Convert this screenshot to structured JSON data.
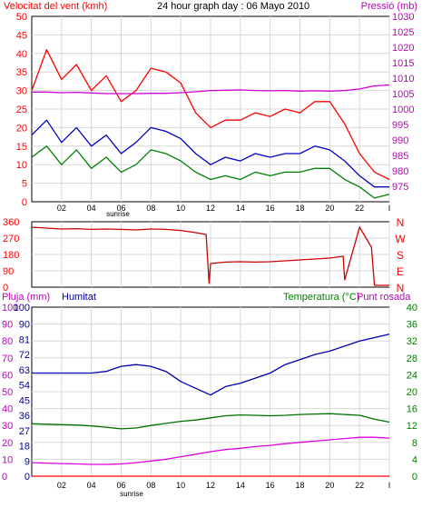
{
  "header": {
    "left_label": "Velocitat del vent (kmh)",
    "center_label": "24 hour graph day : 06 Mayo 2010",
    "right_label": "Pressió (mb)"
  },
  "colors": {
    "wind_gust": "#ff0000",
    "wind_avg": "#0000c8",
    "wind_low": "#008000",
    "pressure": "#d000d0",
    "direction": "#cc0000",
    "humidity": "#0000b0",
    "temperature": "#007000",
    "dewpoint": "#e000e0",
    "rain": "#ff0000",
    "label_red": "#ff0000",
    "label_green": "#008000",
    "label_blue": "#0000a0",
    "label_magenta": "#c000c0",
    "grid": "#d8d8d8",
    "frame": "#000000"
  },
  "x_axis": {
    "tick_labels": [
      "02",
      "04",
      "06",
      "08",
      "10",
      "12",
      "14",
      "16",
      "18",
      "20",
      "22",
      "I"
    ],
    "sunrise_label": "sunrise"
  },
  "chart_data": [
    {
      "type": "line",
      "title": "24 hour graph day : 06 Mayo 2010",
      "ylabel": "Velocitat del vent (kmh)",
      "ylabel_right": "Pressió (mb)",
      "ylim": [
        0,
        50
      ],
      "y_ticks": [
        "0",
        "5",
        "10",
        "15",
        "20",
        "25",
        "30",
        "35",
        "40",
        "45",
        "50"
      ],
      "y2lim": [
        970,
        1030
      ],
      "y2_ticks": [
        "975",
        "980",
        "985",
        "990",
        "995",
        "1000",
        "1005",
        "1010",
        "1015",
        "1020",
        "1025",
        "1030"
      ],
      "x": [
        0,
        1,
        2,
        3,
        4,
        5,
        6,
        7,
        8,
        9,
        10,
        11,
        12,
        13,
        14,
        15,
        16,
        17,
        18,
        19,
        20,
        21,
        22,
        23,
        24
      ],
      "series": [
        {
          "values": [
            30,
            41,
            33,
            37,
            30,
            34,
            27,
            30,
            36,
            35,
            32,
            24,
            20,
            22,
            22,
            24,
            23,
            25,
            24,
            27,
            27,
            21,
            13,
            8,
            6
          ]
        },
        {
          "values": [
            18,
            22,
            16,
            20,
            15,
            18,
            13,
            16,
            20,
            19,
            17,
            13,
            10,
            12,
            11,
            13,
            12,
            13,
            13,
            15,
            14,
            11,
            7,
            4,
            4
          ]
        },
        {
          "values": [
            12,
            15,
            10,
            14,
            9,
            12,
            8,
            10,
            14,
            13,
            11,
            8,
            6,
            7,
            6,
            8,
            7,
            8,
            8,
            9,
            9,
            6,
            4,
            1,
            2
          ]
        },
        {
          "values": [
            1005.5,
            1005.5,
            1005.3,
            1005.4,
            1005.2,
            1005.0,
            1005.0,
            1005.0,
            1005.1,
            1005.1,
            1005.3,
            1005.6,
            1006.0,
            1006.1,
            1006.2,
            1006.0,
            1005.9,
            1006.0,
            1005.8,
            1005.9,
            1005.8,
            1006.0,
            1006.5,
            1007.5,
            1007.8
          ]
        }
      ]
    },
    {
      "type": "line",
      "ylim": [
        0,
        360
      ],
      "y_ticks": [
        "0",
        "90",
        "180",
        "270",
        "360"
      ],
      "right_labels": [
        "N",
        "W",
        "S",
        "E",
        "N"
      ],
      "x": [
        0,
        1,
        2,
        3,
        4,
        5,
        6,
        7,
        8,
        9,
        10,
        11,
        11.7,
        11.9,
        12,
        13,
        14,
        15,
        16,
        17,
        18,
        19,
        20,
        20.9,
        21,
        22,
        22.8,
        23,
        24
      ],
      "series": [
        {
          "values": [
            330,
            325,
            320,
            322,
            318,
            320,
            318,
            315,
            320,
            318,
            312,
            300,
            290,
            20,
            130,
            138,
            140,
            138,
            140,
            145,
            150,
            155,
            160,
            170,
            40,
            330,
            220,
            10,
            10
          ]
        }
      ]
    },
    {
      "type": "line",
      "labels": {
        "rain": "Pluja (mm)",
        "humidity": "Humitat",
        "temperature": "Temperatura (°C)",
        "dewpoint": "Punt rosada"
      },
      "ylim_left": [
        0,
        100
      ],
      "y_ticks_left": [
        "0",
        "10",
        "20",
        "30",
        "40",
        "50",
        "60",
        "70",
        "80",
        "90",
        "100"
      ],
      "ylim_left_inner": [
        0,
        100
      ],
      "y_ticks_left_inner": [
        "0",
        "9",
        "18",
        "27",
        "36",
        "45",
        "54",
        "63",
        "72",
        "81",
        "90",
        "100"
      ],
      "ylim_right": [
        0,
        40
      ],
      "y_ticks_right": [
        "0",
        "4",
        "8",
        "12",
        "16",
        "20",
        "24",
        "28",
        "32",
        "36",
        "40"
      ],
      "x": [
        0,
        1,
        2,
        3,
        4,
        5,
        6,
        7,
        8,
        9,
        10,
        11,
        12,
        13,
        14,
        15,
        16,
        17,
        18,
        19,
        20,
        21,
        22,
        23,
        24
      ],
      "series": [
        {
          "values": [
            61,
            61,
            61,
            61,
            61,
            62,
            65,
            66,
            65,
            62,
            56,
            52,
            48,
            53,
            55,
            58,
            61,
            66,
            69,
            72,
            74,
            77,
            80,
            82,
            84
          ]
        },
        {
          "values": [
            12.4,
            12.3,
            12.2,
            12.1,
            11.9,
            11.6,
            11.2,
            11.4,
            12.0,
            12.5,
            13.0,
            13.3,
            13.8,
            14.3,
            14.5,
            14.4,
            14.3,
            14.4,
            14.6,
            14.7,
            14.8,
            14.6,
            14.4,
            13.5,
            12.8
          ]
        },
        {
          "values": [
            3.2,
            3.1,
            3.0,
            2.9,
            2.8,
            2.8,
            2.9,
            3.2,
            3.6,
            4.0,
            4.6,
            5.2,
            5.8,
            6.3,
            6.6,
            7.0,
            7.3,
            7.7,
            8.0,
            8.3,
            8.6,
            8.9,
            9.2,
            9.2,
            9.0
          ]
        },
        {
          "values": [
            0,
            0,
            0,
            0,
            0,
            0,
            0,
            0,
            0,
            0,
            0,
            0,
            0,
            0,
            0,
            0,
            0,
            0,
            0,
            0,
            0,
            0,
            0,
            0,
            0
          ]
        }
      ]
    }
  ]
}
